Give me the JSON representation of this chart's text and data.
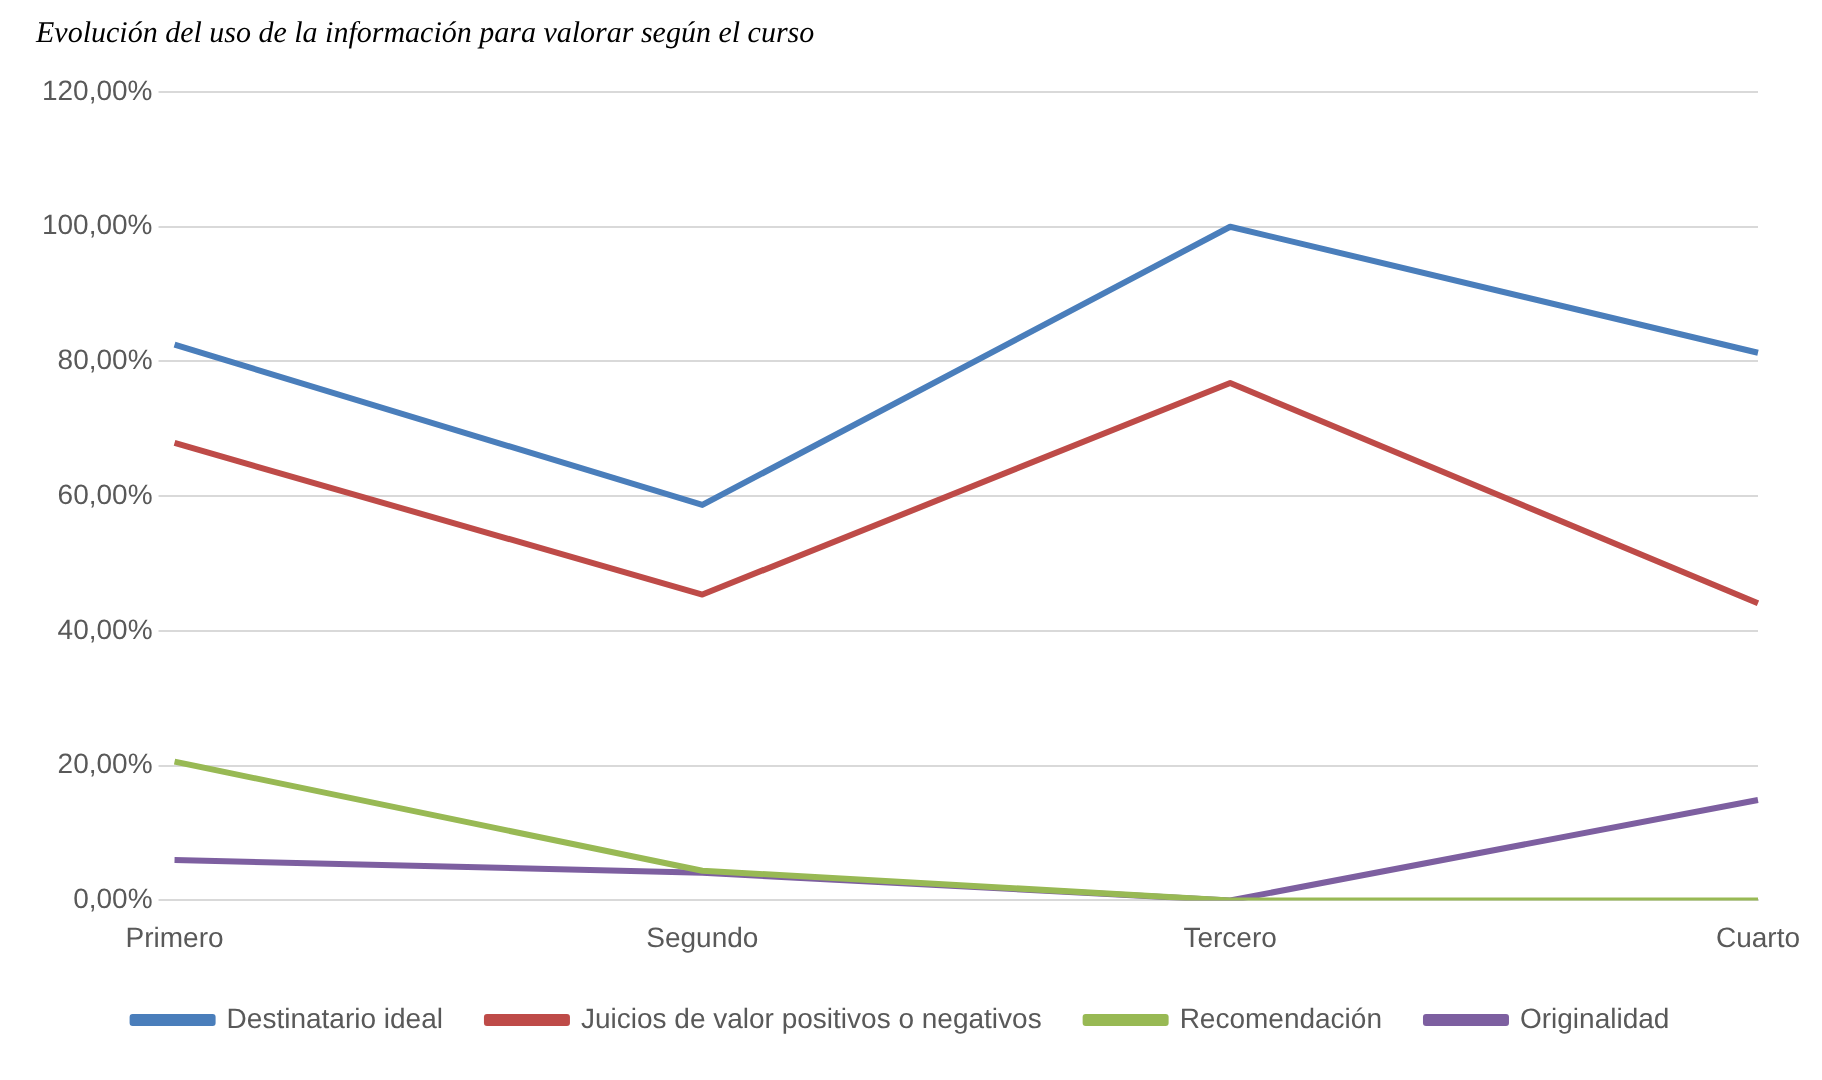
{
  "chart_data": {
    "type": "line",
    "title": "Evolución del uso de la información para valorar según el curso",
    "categories": [
      "Primero",
      "Segundo",
      "Tercero",
      "Cuarto"
    ],
    "series": [
      {
        "name": "Destinatario ideal",
        "color": "#4a7ebb",
        "values": [
          82.5,
          58.7,
          100,
          81.3
        ]
      },
      {
        "name": "Juicios de valor positivos o negativos",
        "color": "#be4b48",
        "values": [
          67.9,
          45.4,
          76.8,
          44.1
        ]
      },
      {
        "name": "Recomendación",
        "color": "#98b954",
        "values": [
          20.6,
          4.4,
          0,
          0
        ]
      },
      {
        "name": "Originalidad",
        "color": "#7d5fa0",
        "values": [
          6.0,
          4.1,
          0,
          14.9
        ]
      }
    ],
    "ylim": [
      0,
      120
    ],
    "yticks": [
      {
        "value": 0,
        "label": "0,00%"
      },
      {
        "value": 20,
        "label": "20,00%"
      },
      {
        "value": 40,
        "label": "40,00%"
      },
      {
        "value": 60,
        "label": "60,00%"
      },
      {
        "value": 80,
        "label": "80,00%"
      },
      {
        "value": 100,
        "label": "100,00%"
      },
      {
        "value": 120,
        "label": "120,00%"
      }
    ],
    "grid": "y",
    "legend": "bottom",
    "marker": "none",
    "line_style": "solid"
  }
}
